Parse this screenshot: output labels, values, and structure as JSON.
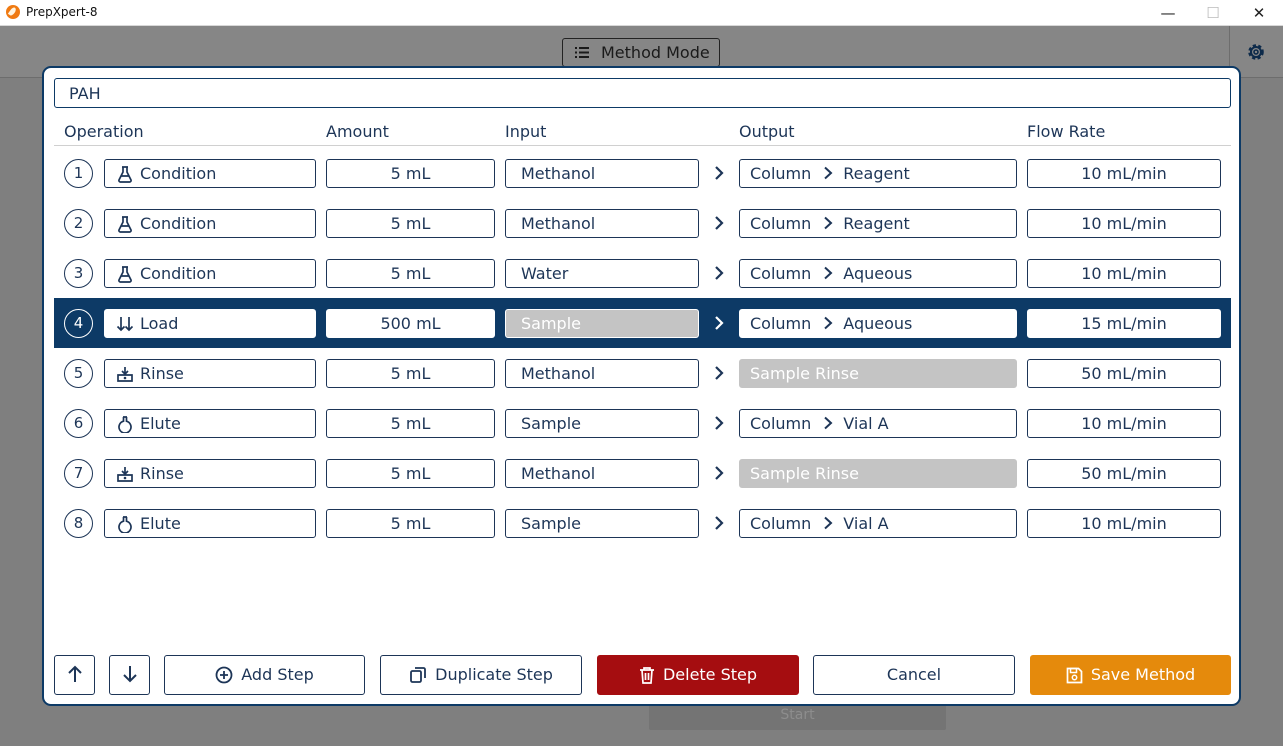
{
  "window": {
    "title": "PrepXpert-8",
    "minimize": "—",
    "maximize": "☐",
    "close": "✕"
  },
  "header": {
    "mode_label": "Method Mode"
  },
  "background": {
    "start_label": "Start"
  },
  "method": {
    "name": "PAH"
  },
  "columns": {
    "operation": "Operation",
    "amount": "Amount",
    "input": "Input",
    "output": "Output",
    "flow_rate": "Flow Rate"
  },
  "steps": [
    {
      "number": "1",
      "operation": "Condition",
      "icon": "flask-icon",
      "amount": "5 mL",
      "input": "Methanol",
      "output_dest": "Column",
      "output_target": "Reagent",
      "flow_rate": "10 mL/min"
    },
    {
      "number": "2",
      "operation": "Condition",
      "icon": "flask-icon",
      "amount": "5 mL",
      "input": "Methanol",
      "output_dest": "Column",
      "output_target": "Reagent",
      "flow_rate": "10 mL/min"
    },
    {
      "number": "3",
      "operation": "Condition",
      "icon": "flask-icon",
      "amount": "5 mL",
      "input": "Water",
      "output_dest": "Column",
      "output_target": "Aqueous",
      "flow_rate": "10 mL/min"
    },
    {
      "number": "4",
      "operation": "Load",
      "icon": "load-arrows-icon",
      "amount": "500 mL",
      "input": "Sample",
      "output_dest": "Column",
      "output_target": "Aqueous",
      "flow_rate": "15 mL/min",
      "selected": true,
      "input_disabled": true
    },
    {
      "number": "5",
      "operation": "Rinse",
      "icon": "rinse-icon",
      "amount": "5 mL",
      "input": "Methanol",
      "output_plain": "Sample Rinse",
      "flow_rate": "50 mL/min",
      "output_disabled": true
    },
    {
      "number": "6",
      "operation": "Elute",
      "icon": "elute-flask-icon",
      "amount": "5 mL",
      "input": "Sample",
      "output_dest": "Column",
      "output_target": "Vial A",
      "flow_rate": "10 mL/min"
    },
    {
      "number": "7",
      "operation": "Rinse",
      "icon": "rinse-icon",
      "amount": "5 mL",
      "input": "Methanol",
      "output_plain": "Sample Rinse",
      "flow_rate": "50 mL/min",
      "output_disabled": true
    },
    {
      "number": "8",
      "operation": "Elute",
      "icon": "elute-flask-icon",
      "amount": "5 mL",
      "input": "Sample",
      "output_dest": "Column",
      "output_target": "Vial A",
      "flow_rate": "10 mL/min"
    }
  ],
  "footer": {
    "add_step": "Add Step",
    "duplicate_step": "Duplicate Step",
    "delete_step": "Delete Step",
    "cancel": "Cancel",
    "save_method": "Save Method"
  },
  "colors": {
    "navy": "#0d3a66",
    "delete": "#a50d10",
    "save": "#e58a0c",
    "disabled": "#c4c4c4"
  }
}
